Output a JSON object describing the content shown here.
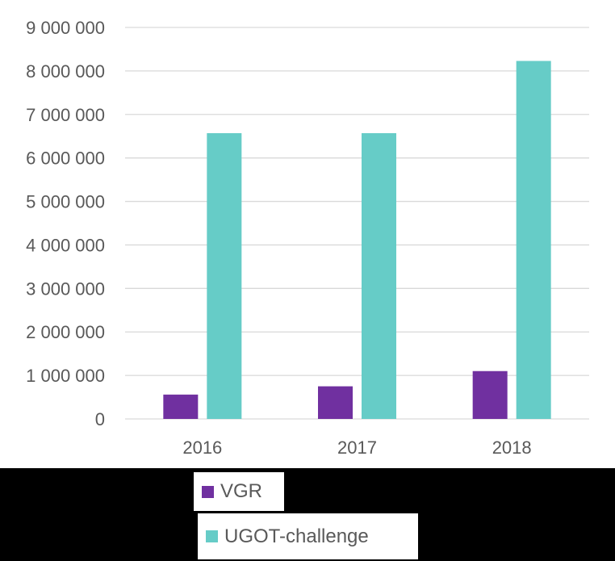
{
  "chart_data": {
    "type": "bar",
    "title": "",
    "xlabel": "",
    "ylabel": "",
    "categories": [
      "2016",
      "2017",
      "2018"
    ],
    "series": [
      {
        "name": "VGR",
        "color": "#7030A0",
        "values": [
          560000,
          750000,
          1100000
        ]
      },
      {
        "name": "UGOT-challenge",
        "color": "#66CCC7",
        "values": [
          6570000,
          6570000,
          8230000
        ]
      }
    ],
    "ylim": [
      0,
      9000000
    ],
    "y_ticks": [
      0,
      1000000,
      2000000,
      3000000,
      4000000,
      5000000,
      6000000,
      7000000,
      8000000,
      9000000
    ],
    "y_tick_labels": [
      "0",
      "1 000 000",
      "2 000 000",
      "3 000 000",
      "4 000 000",
      "5 000 000",
      "6 000 000",
      "7 000 000",
      "8 000 000",
      "9 000 000"
    ],
    "grid": true,
    "legend_position": "bottom"
  },
  "legend": {
    "items": [
      {
        "label": "VGR",
        "color": "#7030A0"
      },
      {
        "label": "UGOT-challenge",
        "color": "#66CCC7"
      }
    ]
  }
}
